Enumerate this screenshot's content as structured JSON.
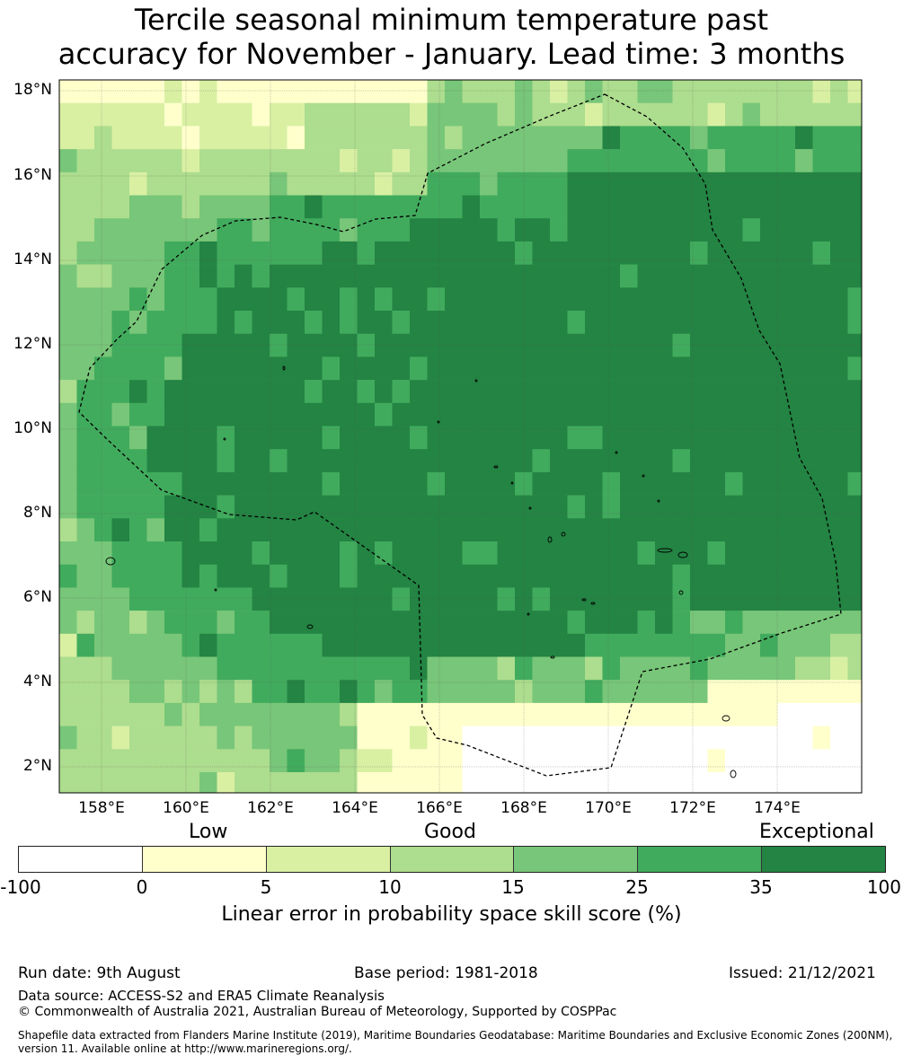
{
  "title": {
    "line1": "Tercile seasonal minimum temperature past",
    "line2": "accuracy for November - January. Lead time: 3 months"
  },
  "map": {
    "lat_labels": [
      "18°N",
      "16°N",
      "14°N",
      "12°N",
      "10°N",
      "8°N",
      "6°N",
      "4°N",
      "2°N"
    ],
    "lon_labels": [
      "158°E",
      "160°E",
      "162°E",
      "164°E",
      "166°E",
      "168°E",
      "170°E",
      "172°E",
      "174°E"
    ],
    "lat_range": [
      1.5,
      18.4
    ],
    "lon_range": [
      157.0,
      176.0
    ],
    "eez_boundary_color": "#000000",
    "grid_lines": true
  },
  "legend": {
    "category_labels": [
      "Low",
      "Good",
      "Exceptional"
    ],
    "tick_labels": [
      "-100",
      "0",
      "5",
      "10",
      "15",
      "25",
      "35",
      "100"
    ],
    "colors": [
      "#ffffff",
      "#ffffcc",
      "#d9f0a3",
      "#addd8e",
      "#78c679",
      "#41ab5d",
      "#238443"
    ],
    "label": "Linear error in probability space skill score (%)"
  },
  "footer": {
    "run_date": "Run date: 9th August",
    "base_period": "Base period: 1981-2018",
    "issued": "Issued: 21/12/2021",
    "data_source": "Data source: ACCESS-S2 and ERA5 Climate Reanalysis",
    "copyright": "© Commonwealth of Australia 2021, Australian Bureau of Meteorology, Supported by COSPPac",
    "shapefile_note": "Shapefile data extracted from Flanders Marine Institute (2019), Maritime Boundaries Geodatabase: Maritime Boundaries and Exclusive Economic Zones (200NM), version 11. Available online at http://www.marineregions.org/."
  }
}
